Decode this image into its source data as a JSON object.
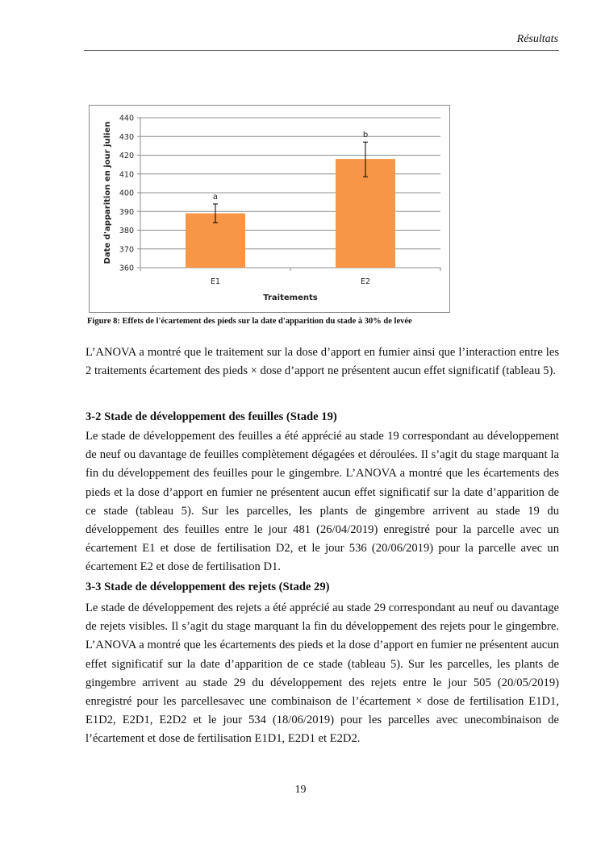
{
  "header": {
    "section": "Résultats"
  },
  "chart_data": {
    "type": "bar",
    "categories": [
      "E1",
      "E2"
    ],
    "values": [
      389,
      418
    ],
    "error_bars": [
      [
        384,
        394
      ],
      [
        408.5,
        427
      ]
    ],
    "significance_letters": [
      "a",
      "b"
    ],
    "xlabel": "Traitements",
    "ylabel": "Date d'apparition en jour julien",
    "ylim": [
      360,
      440
    ],
    "yticks": [
      "360",
      "370",
      "380",
      "390",
      "400",
      "410",
      "420",
      "430",
      "440"
    ],
    "grid": true,
    "bar_color": "#F79646"
  },
  "figure": {
    "caption": "Figure 8: Effets de l'écartement des pieds sur la date d'apparition du stade à 30% de levée"
  },
  "paragraphs": {
    "p1": "L’ANOVA a montré que le traitement sur la dose d’apport en fumier ainsi que l’interaction entre les 2 traitements écartement des pieds × dose d’apport ne présentent aucun effet significatif (tableau 5).",
    "h32": "3-2 Stade de développement des feuilles (Stade 19)",
    "p2": "Le stade de développement des feuilles a été apprécié au stade 19 correspondant au développement de neuf ou davantage de feuilles complètement dégagées et déroulées. Il s’agit du stage marquant la fin du développement des feuilles pour le gingembre. L’ANOVA a montré que les écartements des pieds et la dose d’apport en fumier ne présentent aucun effet significatif sur la date d’apparition de ce stade (tableau 5). Sur les parcelles, les plants de gingembre arrivent au stade 19 du développement des feuilles entre le jour 481 (26/04/2019) enregistré pour la parcelle avec un écartement E1 et dose de fertilisation D2, et le jour 536 (20/06/2019) pour la parcelle avec un écartement E2 et dose de fertilisation D1.",
    "h33": "3-3 Stade de développement des rejets (Stade 29)",
    "p3": "Le stade de développement des rejets a été apprécié au stade 29 correspondant au neuf ou davantage de rejets visibles. Il s’agit du stage marquant la fin du développement des rejets pour le gingembre. L’ANOVA a montré que les écartements des pieds et la dose d’apport en fumier ne présentent aucun effet significatif sur la date d’apparition de ce stade (tableau 5). Sur les parcelles, les plants de gingembre arrivent au stade 29 du développement des rejets entre le jour 505 (20/05/2019) enregistré pour les parcellesavec une combinaison de l’écartement × dose de fertilisation E1D1, E1D2, E2D1, E2D2 et le jour 534 (18/06/2019) pour les parcelles avec unecombinaison de l’écartement et dose de fertilisation E1D1, E2D1 et E2D2."
  },
  "footer": {
    "page_number": "19"
  }
}
